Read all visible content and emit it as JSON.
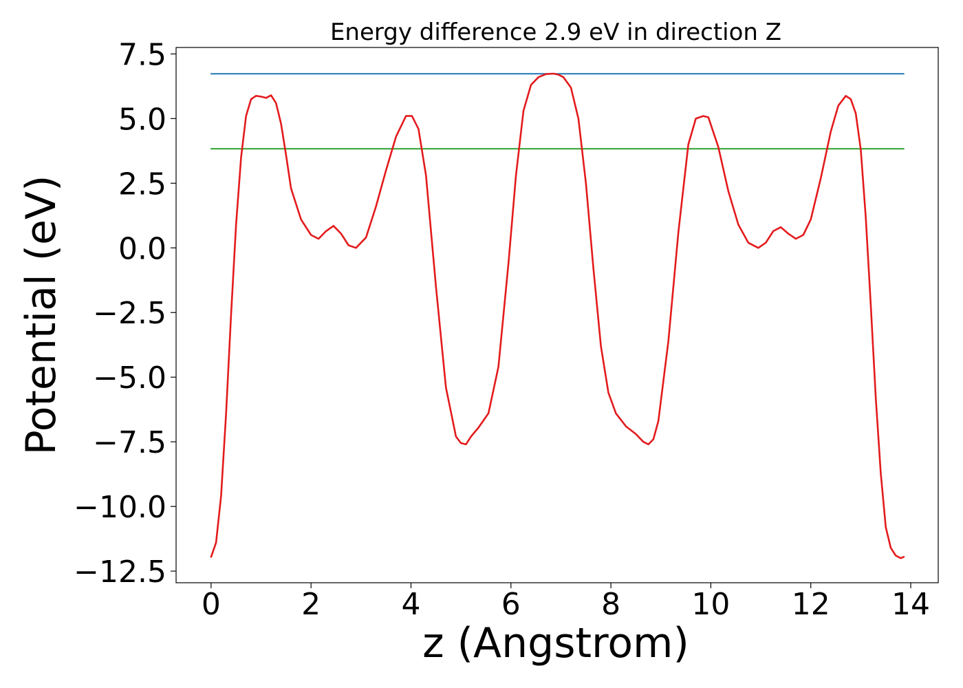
{
  "chart_data": {
    "type": "line",
    "title": "Energy difference 2.9 eV in direction Z",
    "xlabel": "z (Angstrom)",
    "ylabel": "Potential (eV)",
    "xlim": [
      -0.7,
      14.55
    ],
    "ylim": [
      -12.95,
      7.75
    ],
    "xticks": [
      0,
      2,
      4,
      6,
      8,
      10,
      12,
      14
    ],
    "xtick_labels": [
      "0",
      "2",
      "4",
      "6",
      "8",
      "10",
      "12",
      "14"
    ],
    "yticks": [
      -12.5,
      -10.0,
      -7.5,
      -5.0,
      -2.5,
      0.0,
      2.5,
      5.0,
      7.5
    ],
    "ytick_labels": [
      "−12.5",
      "−10.0",
      "−7.5",
      "−5.0",
      "−2.5",
      "0.0",
      "2.5",
      "5.0",
      "7.5"
    ],
    "grid": false,
    "legend": false,
    "series": [
      {
        "color": "#1f77b4",
        "x": [
          0.0,
          13.86
        ],
        "y": [
          6.73,
          6.73
        ]
      },
      {
        "color": "#2ca02c",
        "x": [
          0.0,
          13.86
        ],
        "y": [
          3.83,
          3.83
        ]
      },
      {
        "color": "#e31a1c",
        "x": [
          0.0,
          0.1,
          0.2,
          0.3,
          0.4,
          0.5,
          0.6,
          0.7,
          0.8,
          0.9,
          1.0,
          1.1,
          1.2,
          1.3,
          1.4,
          1.5,
          1.6,
          1.8,
          2.0,
          2.15,
          2.3,
          2.45,
          2.6,
          2.75,
          2.9,
          3.1,
          3.3,
          3.5,
          3.7,
          3.9,
          4.02,
          4.15,
          4.3,
          4.5,
          4.7,
          4.9,
          5.0,
          5.1,
          5.2,
          5.35,
          5.55,
          5.75,
          5.95,
          6.1,
          6.25,
          6.4,
          6.55,
          6.7,
          6.85,
          6.95,
          7.05,
          7.2,
          7.35,
          7.5,
          7.65,
          7.8,
          7.95,
          8.1,
          8.3,
          8.5,
          8.65,
          8.75,
          8.85,
          8.95,
          9.15,
          9.35,
          9.55,
          9.7,
          9.85,
          9.95,
          10.15,
          10.35,
          10.55,
          10.75,
          10.95,
          11.1,
          11.25,
          11.4,
          11.55,
          11.7,
          11.85,
          12.0,
          12.2,
          12.4,
          12.55,
          12.7,
          12.8,
          12.9,
          13.0,
          13.1,
          13.2,
          13.3,
          13.4,
          13.5,
          13.6,
          13.7,
          13.8,
          13.86
        ],
        "y": [
          -11.95,
          -11.4,
          -9.6,
          -6.4,
          -2.6,
          0.9,
          3.5,
          5.1,
          5.75,
          5.88,
          5.85,
          5.8,
          5.9,
          5.6,
          4.8,
          3.6,
          2.3,
          1.1,
          0.5,
          0.35,
          0.65,
          0.85,
          0.55,
          0.1,
          0.0,
          0.4,
          1.6,
          3.0,
          4.3,
          5.1,
          5.1,
          4.6,
          2.8,
          -1.5,
          -5.4,
          -7.3,
          -7.55,
          -7.6,
          -7.3,
          -6.95,
          -6.4,
          -4.6,
          -0.6,
          2.8,
          5.3,
          6.3,
          6.6,
          6.72,
          6.74,
          6.7,
          6.6,
          6.2,
          5.0,
          2.5,
          -0.8,
          -3.8,
          -5.6,
          -6.4,
          -6.9,
          -7.2,
          -7.5,
          -7.6,
          -7.4,
          -6.7,
          -3.6,
          0.6,
          4.0,
          5.0,
          5.1,
          5.05,
          3.9,
          2.2,
          0.9,
          0.2,
          0.0,
          0.2,
          0.65,
          0.8,
          0.55,
          0.35,
          0.5,
          1.1,
          2.7,
          4.5,
          5.5,
          5.88,
          5.75,
          5.2,
          3.8,
          1.2,
          -2.2,
          -5.8,
          -8.7,
          -10.8,
          -11.6,
          -11.9,
          -12.0,
          -11.95
        ]
      }
    ]
  }
}
